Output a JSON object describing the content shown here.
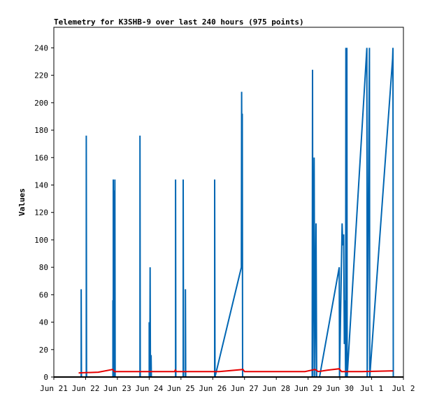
{
  "chart_data": {
    "type": "line",
    "title": "Telemetry for K3SHB-9 over last 240 hours (975 points)",
    "xlabel": "",
    "ylabel": "Values",
    "ylim": [
      0,
      255
    ],
    "xlim": [
      0,
      11
    ],
    "x_ticks": [
      {
        "v": 0,
        "label": "Jun 21"
      },
      {
        "v": 1,
        "label": "Jun 22"
      },
      {
        "v": 2,
        "label": "Jun 23"
      },
      {
        "v": 3,
        "label": "Jun 24"
      },
      {
        "v": 4,
        "label": "Jun 25"
      },
      {
        "v": 5,
        "label": "Jun 26"
      },
      {
        "v": 6,
        "label": "Jun 27"
      },
      {
        "v": 7,
        "label": "Jun 28"
      },
      {
        "v": 8,
        "label": "Jun 29"
      },
      {
        "v": 9,
        "label": "Jun 30"
      },
      {
        "v": 10,
        "label": "Jul 1"
      },
      {
        "v": 11,
        "label": "Jul 2"
      }
    ],
    "y_ticks": [
      0,
      20,
      40,
      60,
      80,
      100,
      120,
      140,
      160,
      180,
      200,
      220,
      240
    ],
    "grid": false,
    "legend": "none",
    "series": [
      {
        "color": "#0066b3",
        "width": 2,
        "points": [
          [
            0.86,
            0
          ],
          [
            0.86,
            64
          ],
          [
            0.87,
            0
          ],
          [
            1.02,
            0
          ],
          [
            1.02,
            176
          ],
          [
            1.03,
            0
          ],
          [
            1.86,
            0
          ],
          [
            1.86,
            56
          ],
          [
            1.87,
            0
          ],
          [
            1.87,
            144
          ],
          [
            1.88,
            64
          ],
          [
            1.88,
            136
          ],
          [
            1.89,
            0
          ],
          [
            1.92,
            0
          ],
          [
            1.92,
            144
          ],
          [
            1.93,
            0
          ],
          [
            2.71,
            0
          ],
          [
            2.71,
            176
          ],
          [
            2.72,
            0
          ],
          [
            3.0,
            0
          ],
          [
            3.0,
            40
          ],
          [
            3.02,
            0
          ],
          [
            3.03,
            80
          ],
          [
            3.04,
            0
          ],
          [
            3.06,
            16
          ],
          [
            3.07,
            0
          ],
          [
            3.83,
            0
          ],
          [
            3.83,
            144
          ],
          [
            3.84,
            0
          ],
          [
            4.07,
            0
          ],
          [
            4.07,
            144
          ],
          [
            4.08,
            0
          ],
          [
            4.14,
            0
          ],
          [
            4.14,
            64
          ],
          [
            4.15,
            0
          ],
          [
            5.06,
            0
          ],
          [
            5.06,
            144
          ],
          [
            5.07,
            0
          ],
          [
            5.9,
            80
          ],
          [
            5.91,
            208
          ],
          [
            5.92,
            120
          ],
          [
            5.93,
            192
          ],
          [
            5.94,
            0
          ],
          [
            8.13,
            0
          ],
          [
            8.14,
            224
          ],
          [
            8.15,
            0
          ],
          [
            8.19,
            160
          ],
          [
            8.21,
            0
          ],
          [
            8.25,
            112
          ],
          [
            8.27,
            0
          ],
          [
            8.36,
            0
          ],
          [
            8.98,
            80
          ],
          [
            8.99,
            0
          ],
          [
            9.07,
            112
          ],
          [
            9.09,
            96
          ],
          [
            9.12,
            104
          ],
          [
            9.14,
            24
          ],
          [
            9.16,
            56
          ],
          [
            9.18,
            0
          ],
          [
            9.19,
            240
          ],
          [
            9.21,
            0
          ],
          [
            9.22,
            240
          ],
          [
            9.23,
            0
          ],
          [
            9.85,
            240
          ],
          [
            9.86,
            0
          ],
          [
            9.93,
            240
          ],
          [
            9.94,
            0
          ],
          [
            10.66,
            232
          ],
          [
            10.67,
            240
          ],
          [
            10.68,
            0
          ]
        ]
      },
      {
        "color": "#e60000",
        "width": 2,
        "points": [
          [
            0.78,
            3
          ],
          [
            1.4,
            3.5
          ],
          [
            1.85,
            5.5
          ],
          [
            1.9,
            4
          ],
          [
            3.8,
            4
          ],
          [
            3.82,
            5
          ],
          [
            3.86,
            4
          ],
          [
            5.2,
            4
          ],
          [
            5.95,
            5.5
          ],
          [
            6.0,
            4
          ],
          [
            7.9,
            4
          ],
          [
            8.22,
            5.5
          ],
          [
            8.32,
            4
          ],
          [
            8.6,
            5
          ],
          [
            8.98,
            6
          ],
          [
            9.05,
            4
          ],
          [
            9.7,
            4
          ],
          [
            10.6,
            4.5
          ],
          [
            10.68,
            4.5
          ]
        ]
      }
    ]
  }
}
